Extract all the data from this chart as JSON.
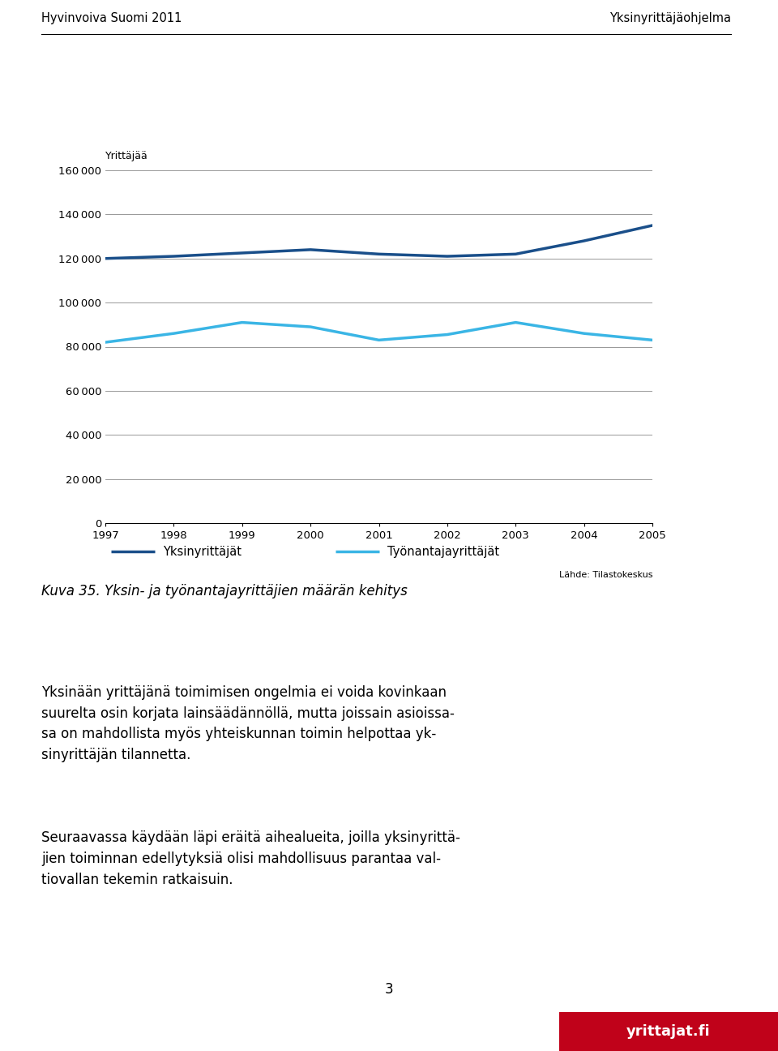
{
  "header_left": "Hyvinvoiva Suomi 2011",
  "header_right": "Yksinyrittäjäohjelma",
  "ylabel": "Yrittäjää",
  "source": "Lähde: Tilastokeskus",
  "caption": "Kuva 35. Yksin- ja työnantajayrittäjien määrän kehitys",
  "para1_line1": "Yksinään yrittäjänä toimimisen ongelmia ei voida kovinkaan",
  "para1_line2": "suurelta osin korjata lainsäädännöllä, mutta joissain asioissa-",
  "para1_line3": "sa on mahdollista myös yhteiskunnan toimin helpottaa yk-",
  "para1_line4": "sinyrittäjän tilannetta.",
  "para2_line1": "Seuraavassa käydään läpi eräitä aihealueita, joilla yksinyrittä-",
  "para2_line2": "jien toiminnan edellytyksiä olisi mahdollisuus parantaa val-",
  "para2_line3": "tiovallan tekemin ratkaisuin.",
  "page_number": "3",
  "logo_text": "yrittajat.fi",
  "years": [
    1997,
    1998,
    1999,
    2000,
    2001,
    2002,
    2003,
    2004,
    2005
  ],
  "yksin_data": [
    120000,
    121000,
    122500,
    124000,
    122000,
    121000,
    122000,
    128000,
    135000
  ],
  "tyonantaja_data": [
    82000,
    86000,
    91000,
    89000,
    83000,
    85500,
    91000,
    86000,
    83000
  ],
  "yksin_color": "#1a4f8a",
  "tyonantaja_color": "#3ab5e5",
  "ylim_min": 0,
  "ylim_max": 160000,
  "ytick_step": 20000,
  "legend_yksin": "Yksinyrittäjät",
  "legend_tyonantaja": "Työnantajayrittäjät",
  "line_width": 2.5,
  "logo_bg": "#c0021a"
}
